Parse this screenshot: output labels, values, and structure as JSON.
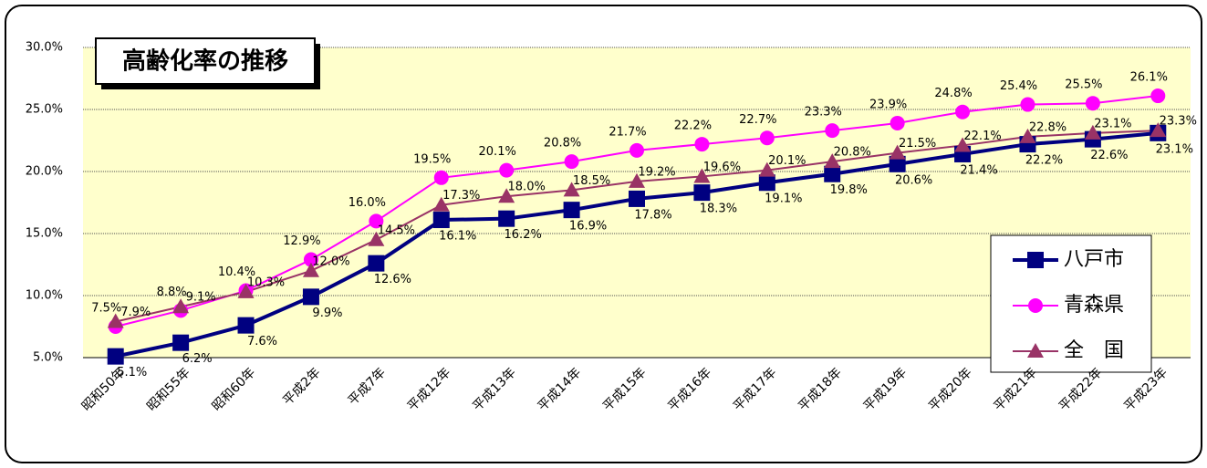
{
  "chart_data": {
    "type": "line",
    "title": "高齢化率の推移",
    "categories": [
      "昭和50年",
      "昭和55年",
      "昭和60年",
      "平成2年",
      "平成7年",
      "平成12年",
      "平成13年",
      "平成14年",
      "平成15年",
      "平成16年",
      "平成17年",
      "平成18年",
      "平成19年",
      "平成20年",
      "平成21年",
      "平成22年",
      "平成23年"
    ],
    "series": [
      {
        "name": "八戸市",
        "color": "#000080",
        "marker": "square",
        "values": [
          5.1,
          6.2,
          7.6,
          9.9,
          12.6,
          16.1,
          16.2,
          16.9,
          17.8,
          18.3,
          19.1,
          19.8,
          20.6,
          21.4,
          22.2,
          22.6,
          23.1
        ],
        "value_labels": [
          "5.1%",
          "6.2%",
          "7.6%",
          "9.9%",
          "12.6%",
          "16.1%",
          "16.2%",
          "16.9%",
          "17.8%",
          "18.3%",
          "19.1%",
          "19.8%",
          "20.6%",
          "21.4%",
          "22.2%",
          "22.6%",
          "23.1%"
        ]
      },
      {
        "name": "青森県",
        "color": "#ff00ff",
        "marker": "circle",
        "values": [
          7.5,
          8.8,
          10.4,
          12.9,
          16.0,
          19.5,
          20.1,
          20.8,
          21.7,
          22.2,
          22.7,
          23.3,
          23.9,
          24.8,
          25.4,
          25.5,
          26.1
        ],
        "value_labels": [
          "7.5%",
          "8.8%",
          "10.4%",
          "12.9%",
          "16.0%",
          "19.5%",
          "20.1%",
          "20.8%",
          "21.7%",
          "22.2%",
          "22.7%",
          "23.3%",
          "23.9%",
          "24.8%",
          "25.4%",
          "25.5%",
          "26.1%"
        ]
      },
      {
        "name": "全　国",
        "color": "#993366",
        "marker": "triangle",
        "values": [
          7.9,
          9.1,
          10.3,
          12.0,
          14.5,
          17.3,
          18.0,
          18.5,
          19.2,
          19.6,
          20.1,
          20.8,
          21.5,
          22.1,
          22.8,
          23.1,
          23.3
        ],
        "value_labels": [
          "7.9%",
          "9.1%",
          "10.3%",
          "12.0%",
          "14.5%",
          "17.3%",
          "18.0%",
          "18.5%",
          "19.2%",
          "19.6%",
          "20.1%",
          "20.8%",
          "21.5%",
          "22.1%",
          "22.8%",
          "23.1%",
          "23.3%"
        ]
      }
    ],
    "ylim": [
      5,
      30
    ],
    "yticks": [
      {
        "value": 5,
        "label": "5.0%"
      },
      {
        "value": 10,
        "label": "10.0%"
      },
      {
        "value": 15,
        "label": "15.0%"
      },
      {
        "value": 20,
        "label": "20.0%"
      },
      {
        "value": 25,
        "label": "25.0%"
      },
      {
        "value": 30,
        "label": "30.0%"
      }
    ],
    "grid": true
  }
}
